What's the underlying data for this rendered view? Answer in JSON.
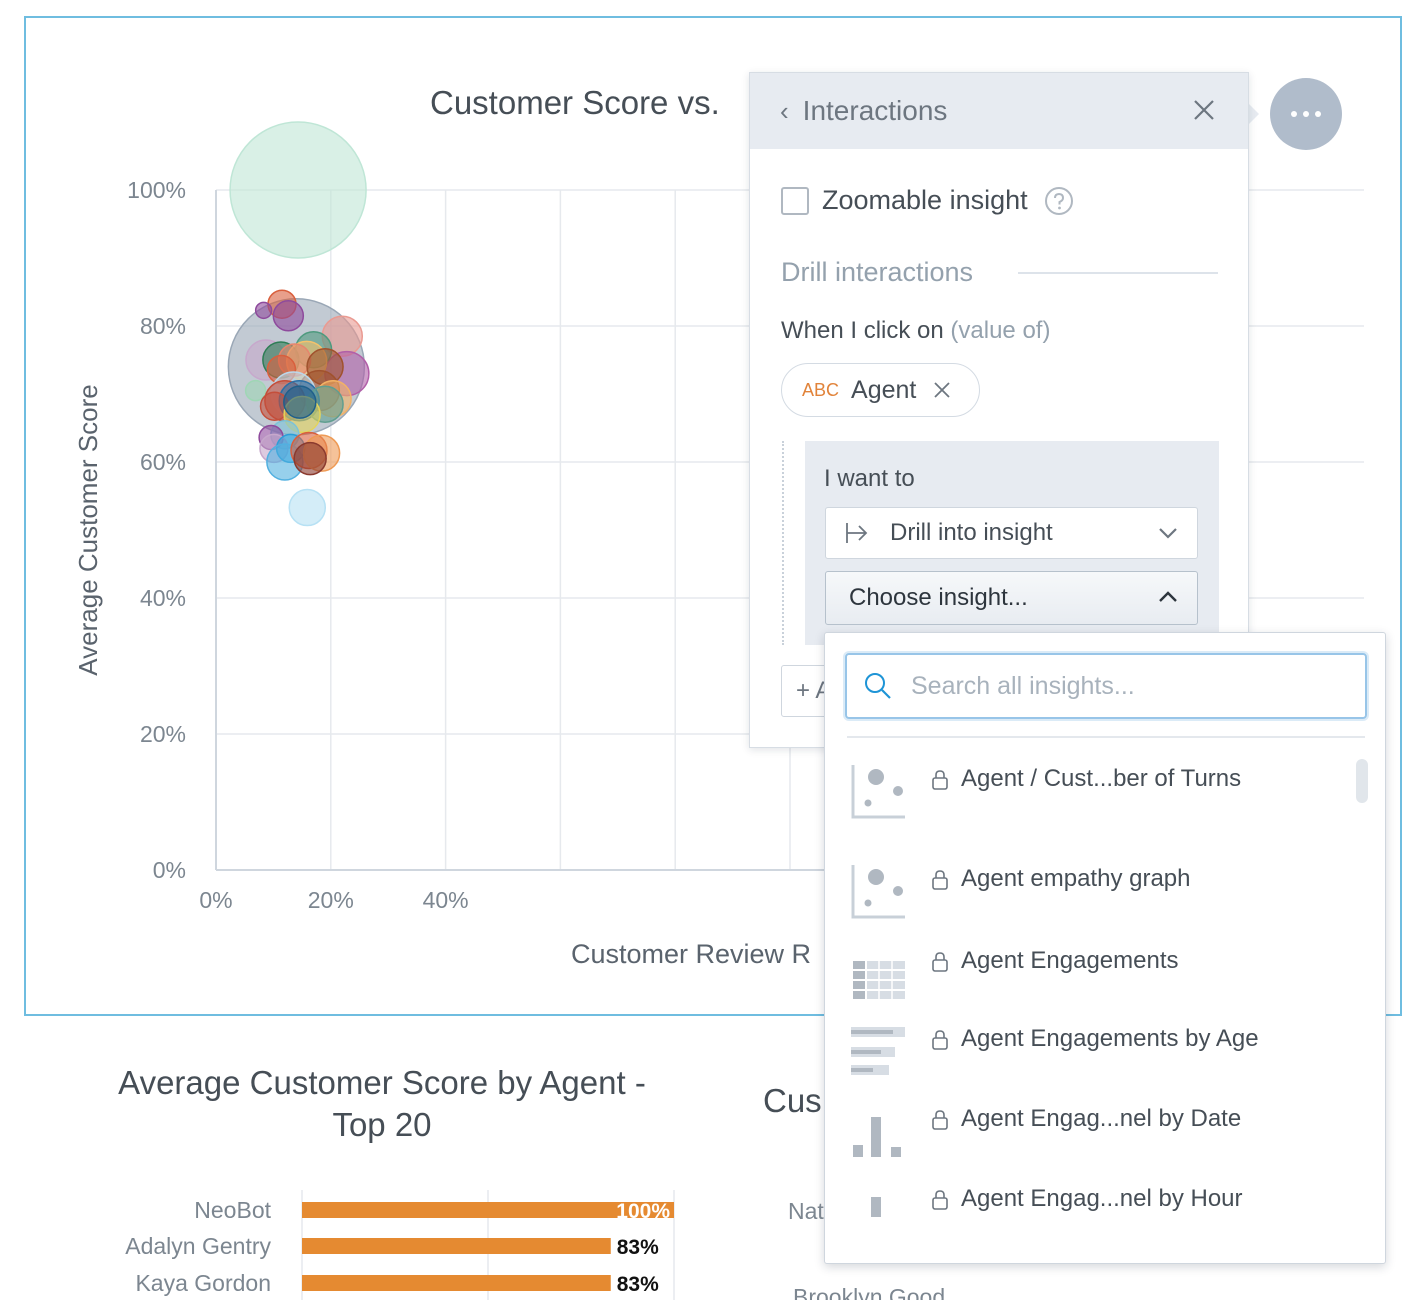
{
  "top_widget": {
    "chart_title": "Customer Score vs.",
    "menu_button": "options-menu",
    "chart_data": {
      "type": "scatter",
      "title": "Customer Score vs.",
      "xlabel": "Customer Review R",
      "ylabel": "Average Customer Score",
      "x_ticks": [
        "0%",
        "20%",
        "40%"
      ],
      "y_ticks": [
        "0%",
        "20%",
        "40%",
        "60%",
        "80%",
        "100%"
      ],
      "xlim": [
        0,
        1
      ],
      "ylim": [
        0,
        1
      ],
      "grid": true,
      "points": [
        {
          "x": 0.143,
          "y": 1.0,
          "size": 68,
          "color": "#bfe6d6"
        },
        {
          "x": 0.14,
          "y": 0.74,
          "size": 68,
          "color": "#9aa7b6"
        },
        {
          "x": 0.115,
          "y": 0.832,
          "size": 14,
          "color": "#d95f3d"
        },
        {
          "x": 0.083,
          "y": 0.823,
          "size": 8,
          "color": "#8e4a9c"
        },
        {
          "x": 0.126,
          "y": 0.815,
          "size": 15,
          "color": "#8e4a9c"
        },
        {
          "x": 0.22,
          "y": 0.785,
          "size": 20,
          "color": "#ea9a91"
        },
        {
          "x": 0.228,
          "y": 0.73,
          "size": 22,
          "color": "#b15fa8"
        },
        {
          "x": 0.087,
          "y": 0.75,
          "size": 20,
          "color": "#c7a8cc"
        },
        {
          "x": 0.113,
          "y": 0.75,
          "size": 18,
          "color": "#2e7d55"
        },
        {
          "x": 0.17,
          "y": 0.765,
          "size": 18,
          "color": "#4e9a7e"
        },
        {
          "x": 0.158,
          "y": 0.748,
          "size": 20,
          "color": "#f5c26b"
        },
        {
          "x": 0.137,
          "y": 0.75,
          "size": 16,
          "color": "#e7856d"
        },
        {
          "x": 0.19,
          "y": 0.74,
          "size": 18,
          "color": "#a0522d"
        },
        {
          "x": 0.114,
          "y": 0.736,
          "size": 14,
          "color": "#d95f3d"
        },
        {
          "x": 0.069,
          "y": 0.705,
          "size": 10,
          "color": "#9fd6b5"
        },
        {
          "x": 0.18,
          "y": 0.705,
          "size": 20,
          "color": "#a0522d"
        },
        {
          "x": 0.204,
          "y": 0.693,
          "size": 18,
          "color": "#f3b266"
        },
        {
          "x": 0.135,
          "y": 0.7,
          "size": 22,
          "color": "#bcd7ea"
        },
        {
          "x": 0.12,
          "y": 0.69,
          "size": 20,
          "color": "#c44e3a"
        },
        {
          "x": 0.145,
          "y": 0.69,
          "size": 20,
          "color": "#2c6fa5"
        },
        {
          "x": 0.19,
          "y": 0.685,
          "size": 18,
          "color": "#5f9e8f"
        },
        {
          "x": 0.102,
          "y": 0.682,
          "size": 14,
          "color": "#c44e3a"
        },
        {
          "x": 0.15,
          "y": 0.67,
          "size": 18,
          "color": "#e5d45a"
        },
        {
          "x": 0.12,
          "y": 0.64,
          "size": 14,
          "color": "#7cc3d8"
        },
        {
          "x": 0.096,
          "y": 0.636,
          "size": 12,
          "color": "#8e4a9c"
        },
        {
          "x": 0.101,
          "y": 0.62,
          "size": 14,
          "color": "#c7a8cc"
        },
        {
          "x": 0.13,
          "y": 0.62,
          "size": 14,
          "color": "#2b9dd8"
        },
        {
          "x": 0.12,
          "y": 0.6,
          "size": 18,
          "color": "#52b0e0"
        },
        {
          "x": 0.162,
          "y": 0.617,
          "size": 18,
          "color": "#d95f3d"
        },
        {
          "x": 0.184,
          "y": 0.613,
          "size": 18,
          "color": "#ee9a55"
        },
        {
          "x": 0.164,
          "y": 0.605,
          "size": 16,
          "color": "#8b3a2e"
        },
        {
          "x": 0.159,
          "y": 0.533,
          "size": 18,
          "color": "#b7e1f4"
        },
        {
          "x": 0.146,
          "y": 0.688,
          "size": 16,
          "color": "#1f5f8b"
        }
      ]
    }
  },
  "panel": {
    "back_label": "‹",
    "title": "Interactions",
    "zoomable_label": "Zoomable insight",
    "drill_section_title": "Drill interactions",
    "when_click_label": "When I click on",
    "when_click_muted": "(value of)",
    "chip_type": "ABC",
    "chip_label": "Agent",
    "want_label": "I want to",
    "action_select": "Drill into insight",
    "insight_select": "Choose insight...",
    "add_button_label": "+ A"
  },
  "dropdown": {
    "search_placeholder": "Search all insights...",
    "items": [
      {
        "name": "Agent / Cust...ber of Turns",
        "icon": "scatter-chart-icon"
      },
      {
        "name": "Agent empathy graph",
        "icon": "scatter-chart-icon"
      },
      {
        "name": "Agent Engagements",
        "icon": "table-icon"
      },
      {
        "name": "Agent Engagements by Age",
        "icon": "bar-chart-icon"
      },
      {
        "name": "Agent Engag...nel by Date",
        "icon": "column-chart-icon"
      },
      {
        "name": "Agent Engag...nel by Hour",
        "icon": "column-chart-icon"
      }
    ]
  },
  "bottom_left": {
    "title": "Average Customer Score by Agent - Top 20",
    "chart_data": {
      "type": "bar",
      "title": "Average Customer Score by Agent - Top 20",
      "categories": [
        "NeoBot",
        "Adalyn Gentry",
        "Kaya Gordon"
      ],
      "values": [
        100,
        83,
        83
      ],
      "value_labels": [
        "100%",
        "83%",
        "83%"
      ],
      "xlim": [
        0,
        100
      ],
      "color": "#e58a31"
    }
  },
  "bottom_right": {
    "title": "Cus",
    "rows": [
      "Nat",
      "Brooklyn Good"
    ]
  }
}
